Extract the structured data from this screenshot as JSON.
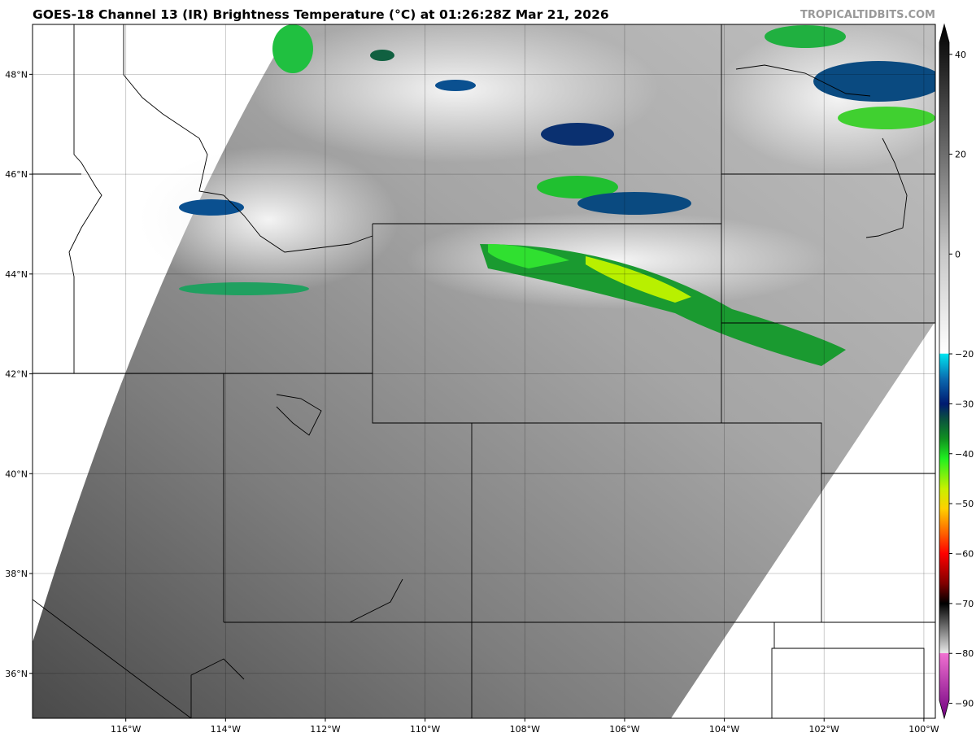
{
  "header": {
    "title": "GOES-18 Channel 13 (IR) Brightness Temperature (°C) at 01:26:28Z Mar 21, 2026",
    "brand": "TROPICALTIDBITS.COM"
  },
  "map": {
    "lon_range": [
      -117.87,
      -99.77
    ],
    "lat_range": [
      35.1,
      49.0
    ],
    "lon_ticks": [
      {
        "v": -116,
        "label": "116°W"
      },
      {
        "v": -114,
        "label": "114°W"
      },
      {
        "v": -112,
        "label": "112°W"
      },
      {
        "v": -110,
        "label": "110°W"
      },
      {
        "v": -108,
        "label": "108°W"
      },
      {
        "v": -106,
        "label": "106°W"
      },
      {
        "v": -104,
        "label": "104°W"
      },
      {
        "v": -102,
        "label": "102°W"
      },
      {
        "v": -100,
        "label": "100°W"
      }
    ],
    "lat_ticks": [
      {
        "v": 36,
        "label": "36°N"
      },
      {
        "v": 38,
        "label": "38°N"
      },
      {
        "v": 40,
        "label": "40°N"
      },
      {
        "v": 42,
        "label": "42°N"
      },
      {
        "v": 44,
        "label": "44°N"
      },
      {
        "v": 46,
        "label": "46°N"
      },
      {
        "v": 48,
        "label": "48°N"
      }
    ]
  },
  "colorbar": {
    "range": [
      -93,
      46
    ],
    "ticks": [
      {
        "v": 40,
        "label": "40"
      },
      {
        "v": 20,
        "label": "20"
      },
      {
        "v": 0,
        "label": "0"
      },
      {
        "v": -20,
        "label": "−20"
      },
      {
        "v": -30,
        "label": "−30"
      },
      {
        "v": -40,
        "label": "−40"
      },
      {
        "v": -50,
        "label": "−50"
      },
      {
        "v": -60,
        "label": "−60"
      },
      {
        "v": -70,
        "label": "−70"
      },
      {
        "v": -80,
        "label": "−80"
      },
      {
        "v": -90,
        "label": "−90"
      }
    ],
    "stops": [
      {
        "v": 46,
        "c": "#000000"
      },
      {
        "v": 20,
        "c": "#6e6e6e"
      },
      {
        "v": 0,
        "c": "#c8c8c8"
      },
      {
        "v": -19.9,
        "c": "#ffffff"
      },
      {
        "v": -20,
        "c": "#00e5f0"
      },
      {
        "v": -25,
        "c": "#0a6ab0"
      },
      {
        "v": -30,
        "c": "#001a70"
      },
      {
        "v": -33,
        "c": "#0a5040"
      },
      {
        "v": -37,
        "c": "#109020"
      },
      {
        "v": -41,
        "c": "#20f020"
      },
      {
        "v": -47,
        "c": "#c8f000"
      },
      {
        "v": -51,
        "c": "#ffd000"
      },
      {
        "v": -56,
        "c": "#ff6000"
      },
      {
        "v": -60,
        "c": "#ff0000"
      },
      {
        "v": -66,
        "c": "#800000"
      },
      {
        "v": -70,
        "c": "#000000"
      },
      {
        "v": -79.9,
        "c": "#e8e8e8"
      },
      {
        "v": -80,
        "c": "#f070d0"
      },
      {
        "v": -93,
        "c": "#700080"
      }
    ]
  }
}
